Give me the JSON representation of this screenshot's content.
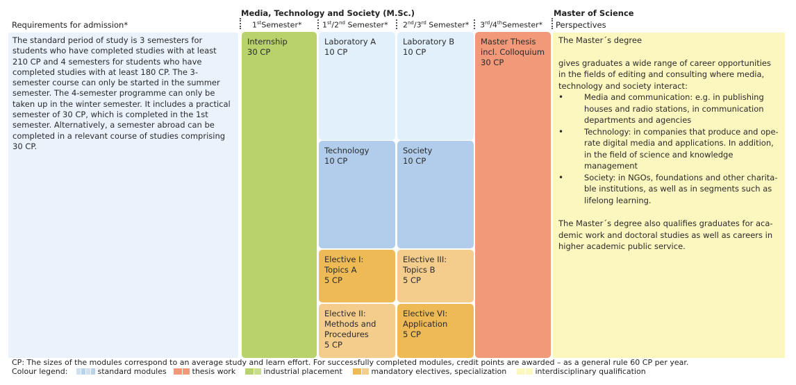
{
  "colors": {
    "standard": "#b9d2ee",
    "standard_light": "#e2f0fc",
    "thesis": "#f2997a",
    "industrial": "#b8d36b",
    "mandatory": "#eeba56",
    "specialization": "#f4cd8d",
    "interdisciplinary": "#fcf6bf"
  },
  "headers": {
    "requirements": "Requirements for admission*",
    "program": "Media, Technology and Society (M.Sc.)",
    "degree": "Master of Science",
    "perspectives": "Perspectives"
  },
  "semesters": {
    "s1": {
      "num": "1",
      "sup": "st",
      "rest": "Semester*"
    },
    "s12": {
      "num1": "1",
      "sup1": "st",
      "mid": "/2",
      "sup2": "nd",
      "rest": " Semester*"
    },
    "s23": {
      "num1": "2",
      "sup1": "nd",
      "mid": "/3",
      "sup2": "rd",
      "rest": " Semester*"
    },
    "s34": {
      "num1": "3",
      "sup1": "rd",
      "mid": "/4",
      "sup2": "th",
      "rest": "Semester*"
    }
  },
  "requirements_text": "The standard period of study is 3 semesters for students who have completed studies with at least 210 CP and 4 semesters for students who have completed studies with at least 180 CP. The 3-semester course can only be started in the summer semester. The 4-semester programme can only be taken up in the winter semester. It includes a practical semester of 30 CP, which is completed in the 1st semester. Alternatively, a semester abroad can be completed in a relevant course of studies comprising 30 CP.",
  "modules": {
    "internship": {
      "name": "Internship",
      "cp": "30 CP"
    },
    "lab_a": {
      "name": "Laboratory A",
      "cp": "10 CP"
    },
    "lab_b": {
      "name": "Laboratory B",
      "cp": "10 CP"
    },
    "thesis": {
      "name": "Master Thesis\nincl. Colloquium",
      "cp": "30 CP"
    },
    "technology": {
      "name": "Technology",
      "cp": "10 CP"
    },
    "society": {
      "name": "Society",
      "cp": "10 CP"
    },
    "elective1": {
      "name": "Elective I:\nTopics A",
      "cp": "5 CP"
    },
    "elective3": {
      "name": "Elective III:\nTopics B",
      "cp": "5 CP"
    },
    "elective2": {
      "name": "Elective II:\nMethods and\nProcedures",
      "cp": "5 CP"
    },
    "elective6": {
      "name": "Elective VI:\nApplication",
      "cp": "5 CP"
    }
  },
  "perspectives": {
    "title": "The Master´s degree",
    "intro": "gives graduates a wide range of career opportunities in the fields of editing and consulting where media, technology and society interact:",
    "bullets": [
      "Media and communication: e.g. in publishing houses and radio stations, in communication departments and agencies",
      "Technology: in companies that produce and ope-rate digital media and applications. In addition, in the field of science and knowledge management",
      "Society: in NGOs, foundations and other charita-ble institutions, as well as in segments such as lifelong learning."
    ],
    "closing": "The Master´s degree also qualifies graduates for aca-demic work and doctoral studies as well as careers in higher academic public service."
  },
  "footer": {
    "cp_note": "CP: The sizes of the modules correspond to an average study and learn effort. For successfully completed modules, credit points are awarded – as a general rule 60 CP per year.",
    "legend_label": "Colour legend:",
    "legend": {
      "standard": "standard modules",
      "thesis": "thesis work",
      "industrial": "industrial placement",
      "electives": "mandatory electives, specialization",
      "interdisciplinary": "interdisciplinary qualification"
    }
  }
}
